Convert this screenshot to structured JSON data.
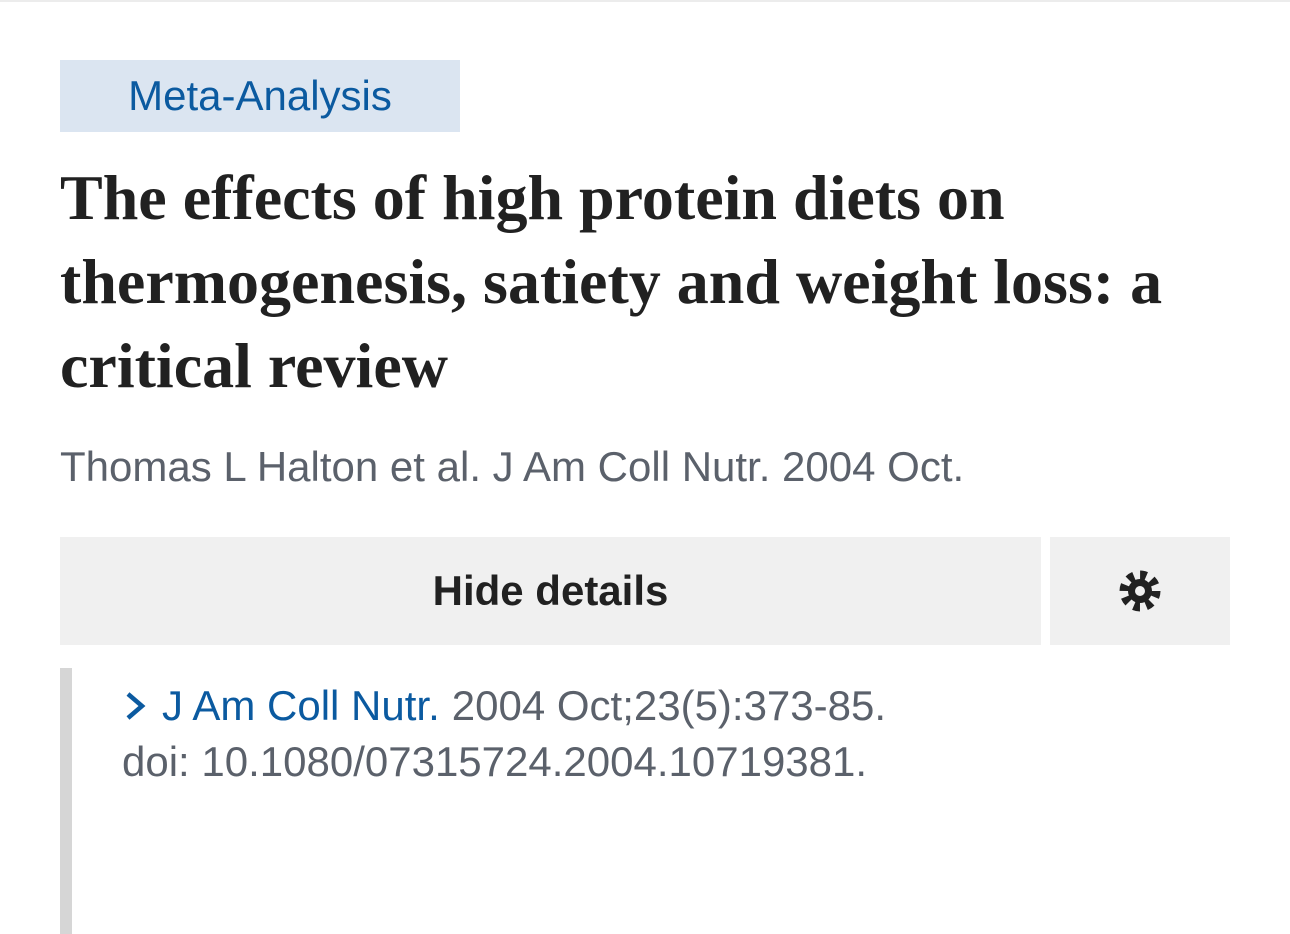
{
  "header": {
    "badge": "Meta-Analysis",
    "title": "The effects of high protein diets on thermogenesis, satiety and weight loss: a critical review",
    "citation": "Thomas L Halton et al. J Am Coll Nutr. 2004 Oct."
  },
  "actions": {
    "hide_details": "Hide details"
  },
  "details": {
    "journal": "J Am Coll Nutr.",
    "issue": "2004 Oct;23(5):373-85.",
    "doi": "doi: 10.1080/07315724.2004.10719381."
  }
}
